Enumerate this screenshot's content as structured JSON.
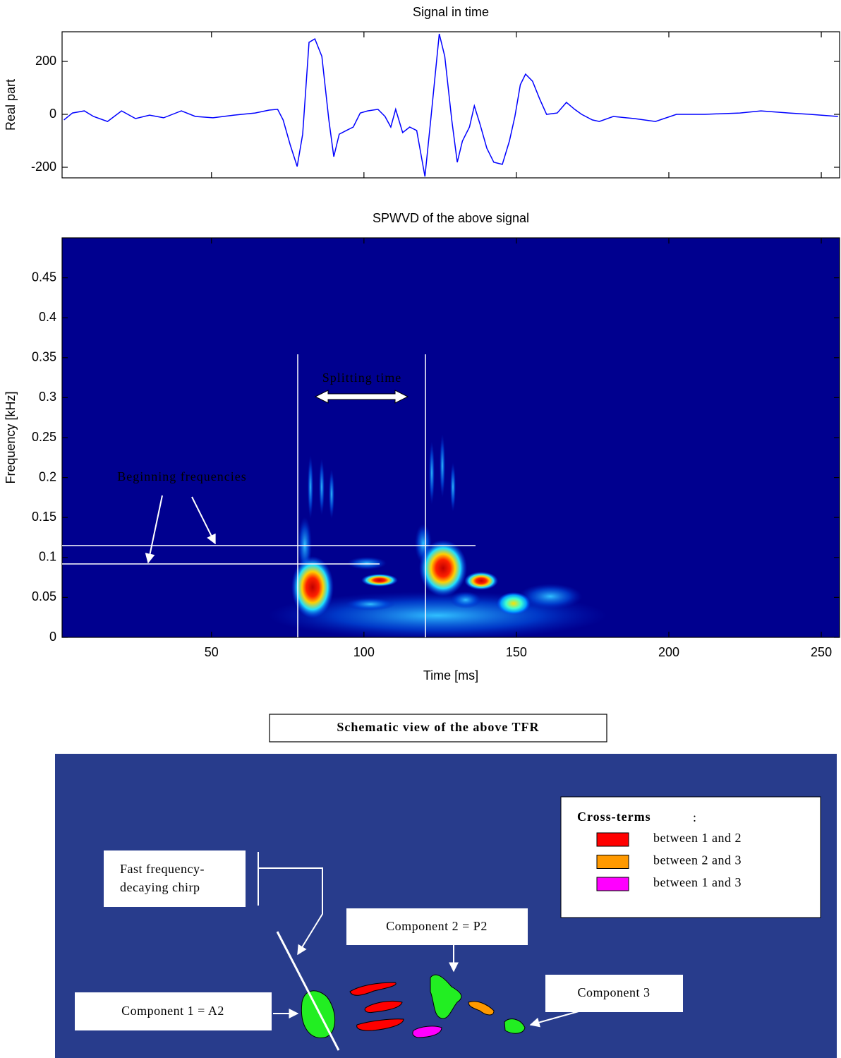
{
  "chart_data": [
    {
      "type": "line",
      "title": "Signal in time",
      "ylabel": "Real part",
      "color": "#0000ff",
      "x": [
        1.6,
        4.4,
        8.3,
        11.3,
        15.9,
        20.5,
        25.1,
        29.7,
        34.3,
        40.1,
        44.7,
        50.5,
        57.4,
        64.3,
        68.9,
        71.7,
        73.5,
        75.8,
        78.1,
        79.9,
        82.0,
        83.9,
        86.2,
        88.5,
        90.1,
        91.9,
        94.2,
        96.5,
        98.8,
        101.2,
        104.6,
        106.9,
        108.8,
        110.4,
        112.7,
        115.0,
        117.3,
        120.0,
        121.9,
        124.7,
        126.5,
        128.8,
        130.6,
        132.3,
        134.6,
        136.2,
        138.0,
        140.3,
        142.6,
        145.4,
        147.7,
        149.5,
        151.3,
        153.0,
        155.3,
        157.6,
        159.9,
        163.4,
        166.4,
        169.1,
        171.4,
        174.9,
        177.2,
        181.8,
        188.7,
        195.6,
        202.5,
        211.8,
        223.3,
        230.2,
        239.4,
        246.3,
        255.5
      ],
      "values": [
        -21,
        5,
        13,
        -8,
        -27,
        13,
        -16,
        -3,
        -13,
        13,
        -8,
        -13,
        -3,
        5,
        16,
        19,
        -21,
        -115,
        -197,
        -75,
        272,
        285,
        219,
        -21,
        -160,
        -75,
        -61,
        -48,
        5,
        13,
        19,
        -8,
        -48,
        19,
        -69,
        -48,
        -61,
        -235,
        -21,
        304,
        219,
        -21,
        -181,
        -101,
        -48,
        32,
        -35,
        -128,
        -181,
        -189,
        -101,
        -8,
        112,
        152,
        125,
        59,
        0,
        5,
        45,
        19,
        0,
        -21,
        -27,
        -8,
        -16,
        -27,
        0,
        0,
        5,
        13,
        5,
        0,
        -8
      ],
      "xlim": [
        1,
        256
      ],
      "ylim": [
        -240,
        312
      ],
      "xticks": [
        50,
        100,
        150,
        200,
        250
      ],
      "yticks": [
        -200,
        0,
        200
      ]
    },
    {
      "type": "heatmap",
      "title": "SPWVD of the above signal",
      "xlabel": "Time [ms]",
      "ylabel": "Frequency [kHz]",
      "background": "#00008f",
      "xlim": [
        1,
        256
      ],
      "ylim": [
        0,
        0.5
      ],
      "xticks": [
        50,
        100,
        150,
        200,
        250
      ],
      "yticks": [
        0,
        0.05,
        0.1,
        0.15,
        0.2,
        0.25,
        0.3,
        0.35,
        0.4,
        0.45
      ],
      "annotations": [
        "Splitting time",
        "Beginning frequencies"
      ]
    }
  ],
  "schematic": {
    "title": "Schematic view of the above TFR",
    "legend": {
      "title": "Cross-terms",
      "separator": ":",
      "entries": [
        {
          "label": "between 1 and 2",
          "color": "#ff0000"
        },
        {
          "label": "between 2 and 3",
          "color": "#ff9900"
        },
        {
          "label": "between 1 and 3",
          "color": "#ff00ff"
        }
      ]
    },
    "chirp_label": [
      "Fast frequency-",
      "decaying chirp"
    ],
    "component_2": "Component 2 = P2",
    "component_3": "Component 3",
    "component_1": "Component 1 = A2"
  }
}
